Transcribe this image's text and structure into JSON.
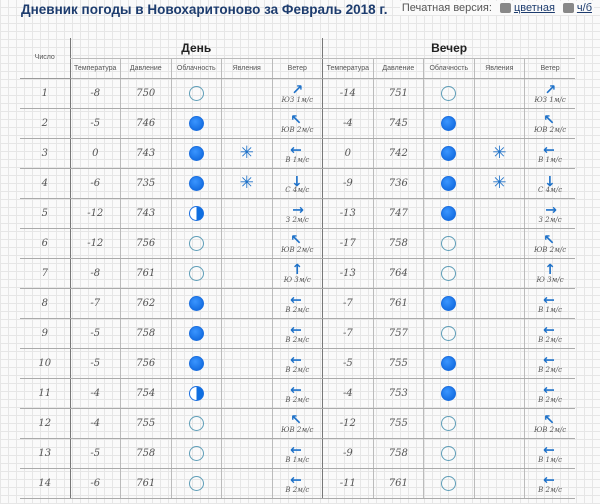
{
  "header": {
    "title": "Дневник погоды в Новохаритоново за Февраль 2018 г.",
    "print_label": "Печатная версия:",
    "print_color": "цветная",
    "print_bw": "ч/б"
  },
  "table": {
    "col_day": "Число",
    "group_day": "День",
    "group_evening": "Вечер",
    "subheaders": [
      "Температура",
      "Давление",
      "Облачность",
      "Явления",
      "Ветер"
    ],
    "colors": {
      "accent": "#1f72c9",
      "cloud": "#0f6ee0"
    },
    "rows": [
      {
        "day": "1",
        "d": {
          "temp": "-8",
          "pres": "750",
          "cloud": "clear",
          "phen": "",
          "wdir": "ЮЗ",
          "wspd": "1м/с"
        },
        "e": {
          "temp": "-14",
          "pres": "751",
          "cloud": "clear",
          "phen": "",
          "wdir": "ЮЗ",
          "wspd": "1м/с"
        }
      },
      {
        "day": "2",
        "d": {
          "temp": "-5",
          "pres": "746",
          "cloud": "overcast",
          "phen": "",
          "wdir": "ЮВ",
          "wspd": "2м/с"
        },
        "e": {
          "temp": "-4",
          "pres": "745",
          "cloud": "overcast",
          "phen": "",
          "wdir": "ЮВ",
          "wspd": "2м/с"
        }
      },
      {
        "day": "3",
        "d": {
          "temp": "0",
          "pres": "743",
          "cloud": "overcast",
          "phen": "snow",
          "wdir": "В",
          "wspd": "1м/с"
        },
        "e": {
          "temp": "0",
          "pres": "742",
          "cloud": "overcast",
          "phen": "snow",
          "wdir": "В",
          "wspd": "1м/с"
        }
      },
      {
        "day": "4",
        "d": {
          "temp": "-6",
          "pres": "735",
          "cloud": "overcast",
          "phen": "snow",
          "wdir": "С",
          "wspd": "4м/с"
        },
        "e": {
          "temp": "-9",
          "pres": "736",
          "cloud": "overcast",
          "phen": "snow",
          "wdir": "С",
          "wspd": "4м/с"
        }
      },
      {
        "day": "5",
        "d": {
          "temp": "-12",
          "pres": "743",
          "cloud": "partly",
          "phen": "",
          "wdir": "З",
          "wspd": "2м/с"
        },
        "e": {
          "temp": "-13",
          "pres": "747",
          "cloud": "overcast",
          "phen": "",
          "wdir": "З",
          "wspd": "2м/с"
        }
      },
      {
        "day": "6",
        "d": {
          "temp": "-12",
          "pres": "756",
          "cloud": "clear",
          "phen": "",
          "wdir": "ЮВ",
          "wspd": "2м/с"
        },
        "e": {
          "temp": "-17",
          "pres": "758",
          "cloud": "clear",
          "phen": "",
          "wdir": "ЮВ",
          "wspd": "2м/с"
        }
      },
      {
        "day": "7",
        "d": {
          "temp": "-8",
          "pres": "761",
          "cloud": "clear",
          "phen": "",
          "wdir": "Ю",
          "wspd": "3м/с"
        },
        "e": {
          "temp": "-13",
          "pres": "764",
          "cloud": "clear",
          "phen": "",
          "wdir": "Ю",
          "wspd": "3м/с"
        }
      },
      {
        "day": "8",
        "d": {
          "temp": "-7",
          "pres": "762",
          "cloud": "overcast",
          "phen": "",
          "wdir": "В",
          "wspd": "2м/с"
        },
        "e": {
          "temp": "-7",
          "pres": "761",
          "cloud": "overcast",
          "phen": "",
          "wdir": "В",
          "wspd": "1м/с"
        }
      },
      {
        "day": "9",
        "d": {
          "temp": "-5",
          "pres": "758",
          "cloud": "overcast",
          "phen": "",
          "wdir": "В",
          "wspd": "2м/с"
        },
        "e": {
          "temp": "-7",
          "pres": "757",
          "cloud": "clear",
          "phen": "",
          "wdir": "В",
          "wspd": "2м/с"
        }
      },
      {
        "day": "10",
        "d": {
          "temp": "-5",
          "pres": "756",
          "cloud": "overcast",
          "phen": "",
          "wdir": "В",
          "wspd": "2м/с"
        },
        "e": {
          "temp": "-5",
          "pres": "755",
          "cloud": "overcast",
          "phen": "",
          "wdir": "В",
          "wspd": "2м/с"
        }
      },
      {
        "day": "11",
        "d": {
          "temp": "-4",
          "pres": "754",
          "cloud": "partly",
          "phen": "",
          "wdir": "В",
          "wspd": "2м/с"
        },
        "e": {
          "temp": "-4",
          "pres": "753",
          "cloud": "overcast",
          "phen": "",
          "wdir": "В",
          "wspd": "2м/с"
        }
      },
      {
        "day": "12",
        "d": {
          "temp": "-4",
          "pres": "755",
          "cloud": "clear",
          "phen": "",
          "wdir": "ЮВ",
          "wspd": "2м/с"
        },
        "e": {
          "temp": "-12",
          "pres": "755",
          "cloud": "clear",
          "phen": "",
          "wdir": "ЮВ",
          "wspd": "2м/с"
        }
      },
      {
        "day": "13",
        "d": {
          "temp": "-5",
          "pres": "758",
          "cloud": "clear",
          "phen": "",
          "wdir": "В",
          "wspd": "1м/с"
        },
        "e": {
          "temp": "-9",
          "pres": "758",
          "cloud": "clear",
          "phen": "",
          "wdir": "В",
          "wspd": "1м/с"
        }
      },
      {
        "day": "14",
        "d": {
          "temp": "-6",
          "pres": "761",
          "cloud": "clear",
          "phen": "",
          "wdir": "В",
          "wspd": "2м/с"
        },
        "e": {
          "temp": "-11",
          "pres": "761",
          "cloud": "clear",
          "phen": "",
          "wdir": "В",
          "wspd": "2м/с"
        }
      }
    ]
  }
}
